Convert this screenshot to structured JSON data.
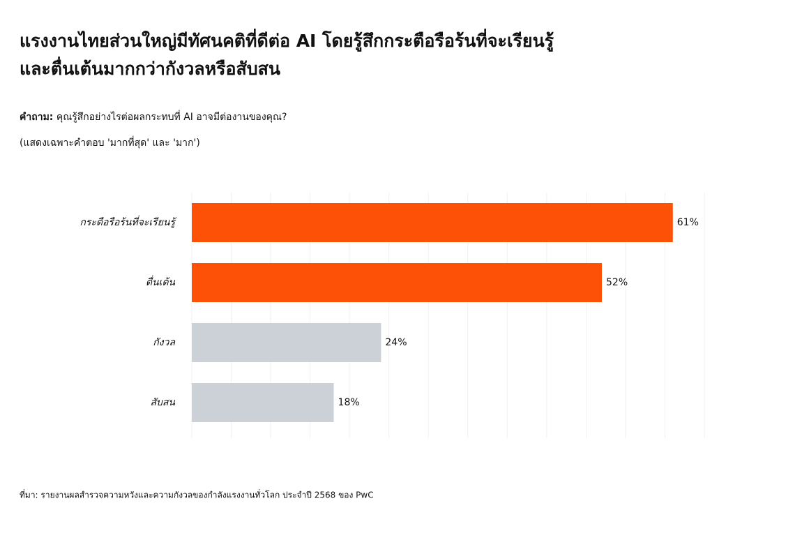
{
  "chart_data": {
    "type": "bar",
    "orientation": "horizontal",
    "title": [
      "แรงงานไทยส่วนใหญ่มีทัศนคติที่ดีต่อ AI โดยรู้สึกกระตือรือร้นที่จะเรียนรู้",
      "และตื่นเต้นมากกว่ากังวลหรือสับสน"
    ],
    "question_label": "คำถาม:",
    "question": "คุณรู้สึกอย่างไรต่อผลกระทบที่ AI อาจมีต่องานของคุณ?",
    "note": "(แสดงเฉพาะคำตอบ 'มากที่สุด' และ 'มาก')",
    "categories": [
      "กระตือรือร้นที่จะเรียนรู้",
      "ตื่นเต้น",
      "กังวล",
      "สับสน"
    ],
    "values": [
      61,
      52,
      24,
      18
    ],
    "value_labels": [
      "61%",
      "52%",
      "24%",
      "18%"
    ],
    "colors": [
      "#fd5108",
      "#fd5108",
      "#cbd1d6",
      "#cbd1d6"
    ],
    "xlim": [
      0,
      65
    ],
    "xticks": [
      0,
      5,
      10,
      15,
      20,
      25,
      30,
      35,
      40,
      45,
      50,
      55,
      60,
      65
    ],
    "grid": true,
    "source": "ที่มา: รายงานผลสำรวจความหวังและความกังวลของกำลังแรงงานทั่วโลก ประจำปี 2568 ของ PwC"
  }
}
